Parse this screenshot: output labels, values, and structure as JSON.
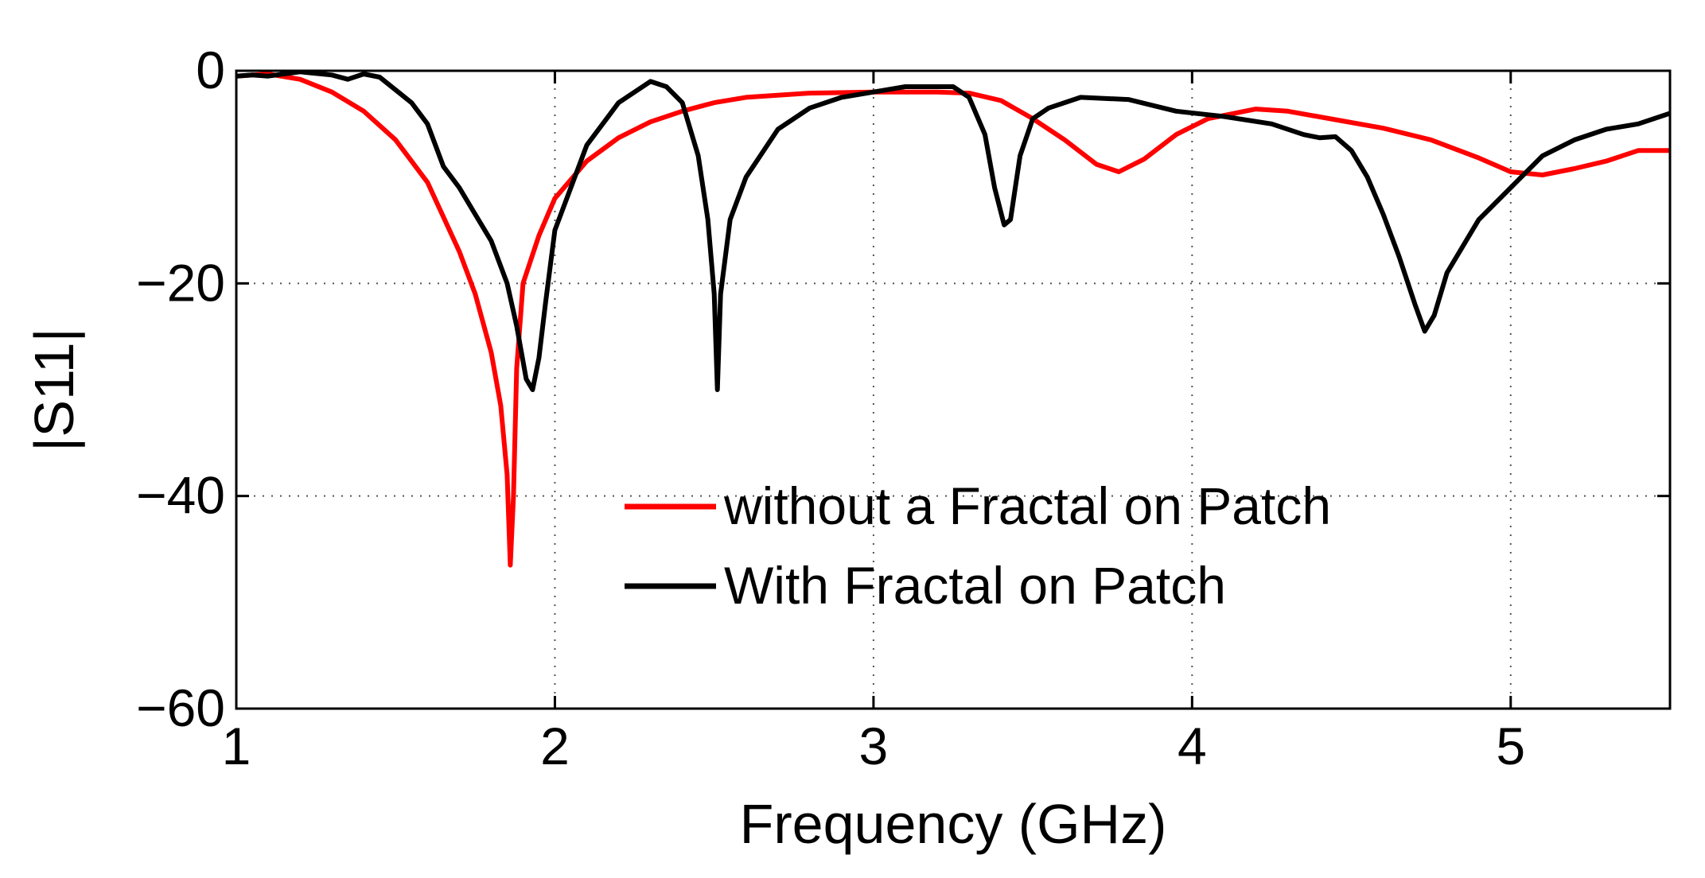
{
  "chart_data": {
    "type": "line",
    "title": "",
    "xlabel": "Frequency (GHz)",
    "ylabel": "|S11|",
    "xlim": [
      1,
      5.5
    ],
    "ylim": [
      -60,
      0
    ],
    "xticks": [
      1,
      2,
      3,
      4,
      5
    ],
    "yticks": [
      0,
      -20,
      -40,
      -60
    ],
    "xtick_labels": [
      "1",
      "2",
      "3",
      "4",
      "5"
    ],
    "ytick_labels": [
      "0",
      "−20",
      "−40",
      "−60"
    ],
    "grid": true,
    "legend_position": "center-right",
    "series": [
      {
        "name": "without a Fractal on Patch",
        "color": "#ff0000",
        "x": [
          1.0,
          1.1,
          1.2,
          1.3,
          1.4,
          1.5,
          1.6,
          1.7,
          1.75,
          1.8,
          1.83,
          1.85,
          1.86,
          1.87,
          1.88,
          1.9,
          1.95,
          2.0,
          2.1,
          2.2,
          2.3,
          2.4,
          2.5,
          2.6,
          2.8,
          3.0,
          3.2,
          3.3,
          3.4,
          3.5,
          3.6,
          3.7,
          3.77,
          3.85,
          3.95,
          4.05,
          4.2,
          4.3,
          4.45,
          4.6,
          4.75,
          4.9,
          5.0,
          5.1,
          5.2,
          5.3,
          5.4,
          5.5
        ],
        "y": [
          -0.5,
          -0.3,
          -0.8,
          -2.0,
          -3.8,
          -6.5,
          -10.5,
          -17.0,
          -21.0,
          -26.5,
          -31.5,
          -38.0,
          -46.5,
          -40.0,
          -28.0,
          -20.0,
          -15.5,
          -12.0,
          -8.5,
          -6.3,
          -4.8,
          -3.8,
          -3.0,
          -2.5,
          -2.1,
          -2.0,
          -2.0,
          -2.1,
          -2.8,
          -4.5,
          -6.5,
          -8.8,
          -9.5,
          -8.3,
          -6.0,
          -4.5,
          -3.6,
          -3.8,
          -4.6,
          -5.4,
          -6.5,
          -8.2,
          -9.5,
          -9.8,
          -9.2,
          -8.5,
          -7.5,
          -7.5
        ]
      },
      {
        "name": "With Fractal on Patch",
        "color": "#000000",
        "x": [
          1.0,
          1.05,
          1.1,
          1.2,
          1.3,
          1.35,
          1.4,
          1.45,
          1.55,
          1.6,
          1.65,
          1.7,
          1.75,
          1.8,
          1.85,
          1.88,
          1.91,
          1.93,
          1.95,
          1.97,
          2.0,
          2.1,
          2.2,
          2.3,
          2.35,
          2.4,
          2.45,
          2.48,
          2.5,
          2.51,
          2.52,
          2.55,
          2.6,
          2.7,
          2.8,
          2.9,
          3.0,
          3.1,
          3.2,
          3.25,
          3.3,
          3.35,
          3.38,
          3.41,
          3.43,
          3.46,
          3.5,
          3.55,
          3.65,
          3.8,
          3.95,
          4.1,
          4.25,
          4.35,
          4.4,
          4.45,
          4.5,
          4.55,
          4.6,
          4.65,
          4.7,
          4.73,
          4.76,
          4.8,
          4.9,
          5.0,
          5.1,
          5.2,
          5.3,
          5.4,
          5.5
        ],
        "y": [
          -0.5,
          -0.4,
          -0.5,
          -0.1,
          -0.4,
          -0.8,
          -0.3,
          -0.6,
          -3.0,
          -5.0,
          -9.0,
          -11.0,
          -13.5,
          -16.0,
          -20.0,
          -24.0,
          -29.0,
          -30.0,
          -27.0,
          -22.0,
          -15.0,
          -7.0,
          -3.0,
          -1.0,
          -1.5,
          -3.0,
          -8.0,
          -14.0,
          -21.0,
          -30.0,
          -21.0,
          -14.0,
          -10.0,
          -5.5,
          -3.5,
          -2.5,
          -2.0,
          -1.5,
          -1.5,
          -1.5,
          -2.5,
          -6.0,
          -11.0,
          -14.5,
          -14.0,
          -8.0,
          -4.5,
          -3.5,
          -2.5,
          -2.7,
          -3.8,
          -4.3,
          -5.0,
          -6.0,
          -6.3,
          -6.2,
          -7.5,
          -10.0,
          -13.5,
          -17.5,
          -22.0,
          -24.5,
          -23.0,
          -19.0,
          -14.0,
          -11.0,
          -8.0,
          -6.5,
          -5.5,
          -5.0,
          -4.0
        ]
      }
    ]
  }
}
